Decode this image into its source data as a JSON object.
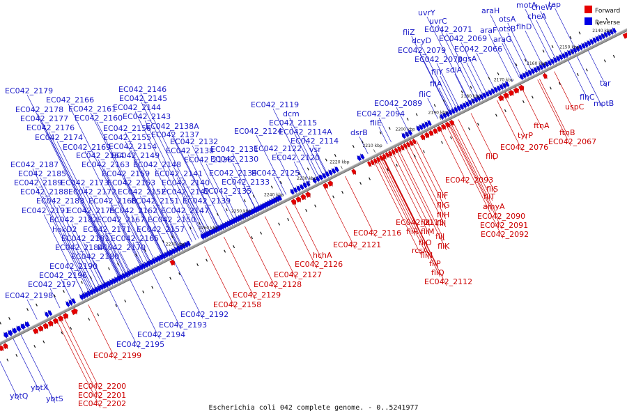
{
  "caption": "Escherichia coli 042 complete genome. - 0..5241977",
  "legend": [
    {
      "label": "Forward",
      "color": "#e60000"
    },
    {
      "label": "Reverse",
      "color": "#0000e6"
    }
  ],
  "colors": {
    "forward": "#e60000",
    "reverse": "#0000e6",
    "backbone": "#999999",
    "forward_label": "#cc0000",
    "reverse_label": "#1a1ac8"
  },
  "ticks": [
    "2140 kbp",
    "2150 kbp",
    "2160 kbp",
    "2170 kbp",
    "2180 kbp",
    "2190 kbp",
    "2200 kbp",
    "2210 kbp",
    "2220 kbp",
    "2230 kbp",
    "2240 kbp",
    "2250 kbp",
    "2260 kbp",
    "2270 kbp"
  ],
  "reverse_labels": [
    "EC042_2179",
    "EC042_2166",
    "EC042_2178",
    "EC042_2161",
    "EC042_2177",
    "EC042_2160",
    "EC042_2176",
    "EC042_2156",
    "EC042_2174",
    "EC042_2155",
    "EC042_2169",
    "EC042_2154",
    "EC042_2164",
    "EC042_2149",
    "EC042_2187",
    "EC042_2163",
    "EC042_2148",
    "EC042_2185",
    "EC042_2159",
    "EC042_2141",
    "EC042_2189",
    "EC042_2173",
    "EC042_2153",
    "EC042_2140",
    "EC042_2188",
    "EC042_2172",
    "EC042_2152",
    "EC042_2142",
    "EC042_2183",
    "EC042_2168",
    "EC042_2151",
    "EC042_2139",
    "EC042_2191",
    "EC042_2175",
    "EC042_2162",
    "EC042_2147",
    "EC042_2182",
    "EC042_2167",
    "EC042_2150",
    "hokD2",
    "EC042_2171",
    "EC042_2157",
    "EC042_2181",
    "EC042_2165",
    "EC042_2184",
    "EC042_2170",
    "EC042_2180",
    "EC042_2190",
    "EC042_2196",
    "EC042_2197",
    "EC042_2198",
    "EC042_2146",
    "EC042_2145",
    "EC042_2144",
    "EC042_2143",
    "EC042_2138A",
    "EC042_2137",
    "EC042_2132",
    "EC042_2138",
    "EC042_2131",
    "EC042_2136",
    "EC042_2130",
    "EC042_2134",
    "EC042_2133",
    "EC042_2135",
    "EC042_2119",
    "dcm",
    "EC042_2115",
    "EC042_2124",
    "EC042_2114A",
    "EC042_2114",
    "EC042_2122",
    "vsr",
    "EC042_2120",
    "EC042_2125",
    "EC042_2089",
    "EC042_2094",
    "fliE",
    "dsrB",
    "uvrY",
    "uvrC",
    "fliZ",
    "EC042_2071",
    "dcyD",
    "EC042_2069",
    "EC042_2079",
    "EC042_2066",
    "EC042_2078",
    "pgsA",
    "sdiA",
    "fliY",
    "fliA",
    "fliC",
    "araH",
    "araF",
    "araG",
    "otsA",
    "otsB",
    "flhD",
    "motA",
    "cheA",
    "cheW",
    "tap",
    "tar",
    "flhC",
    "motB",
    "EC042_2192",
    "EC042_2193",
    "EC042_2194",
    "EC042_2195",
    "ybtQ",
    "ybtX",
    "ybtS"
  ],
  "forward_labels": [
    "EC042_2199",
    "EC042_2200",
    "EC042_2201",
    "EC042_2202",
    "EC042_2158",
    "EC042_2129",
    "EC042_2128",
    "EC042_2127",
    "EC042_2126",
    "hchA",
    "EC042_2121",
    "EC042_2116",
    "EC042_2113",
    "fliR",
    "rcsA",
    "fliN",
    "fliP",
    "fliQ",
    "EC042_2112",
    "fliO",
    "fliK",
    "fliJ",
    "fliM",
    "fliL",
    "fliI",
    "fliH",
    "fliG",
    "fliF",
    "EC042_2093",
    "fliS",
    "fliT",
    "amyA",
    "EC042_2090",
    "EC042_2091",
    "EC042_2092",
    "fliD",
    "EC042_2076",
    "tyrP",
    "ftnA",
    "ftnB",
    "EC042_2067",
    "uspC"
  ]
}
